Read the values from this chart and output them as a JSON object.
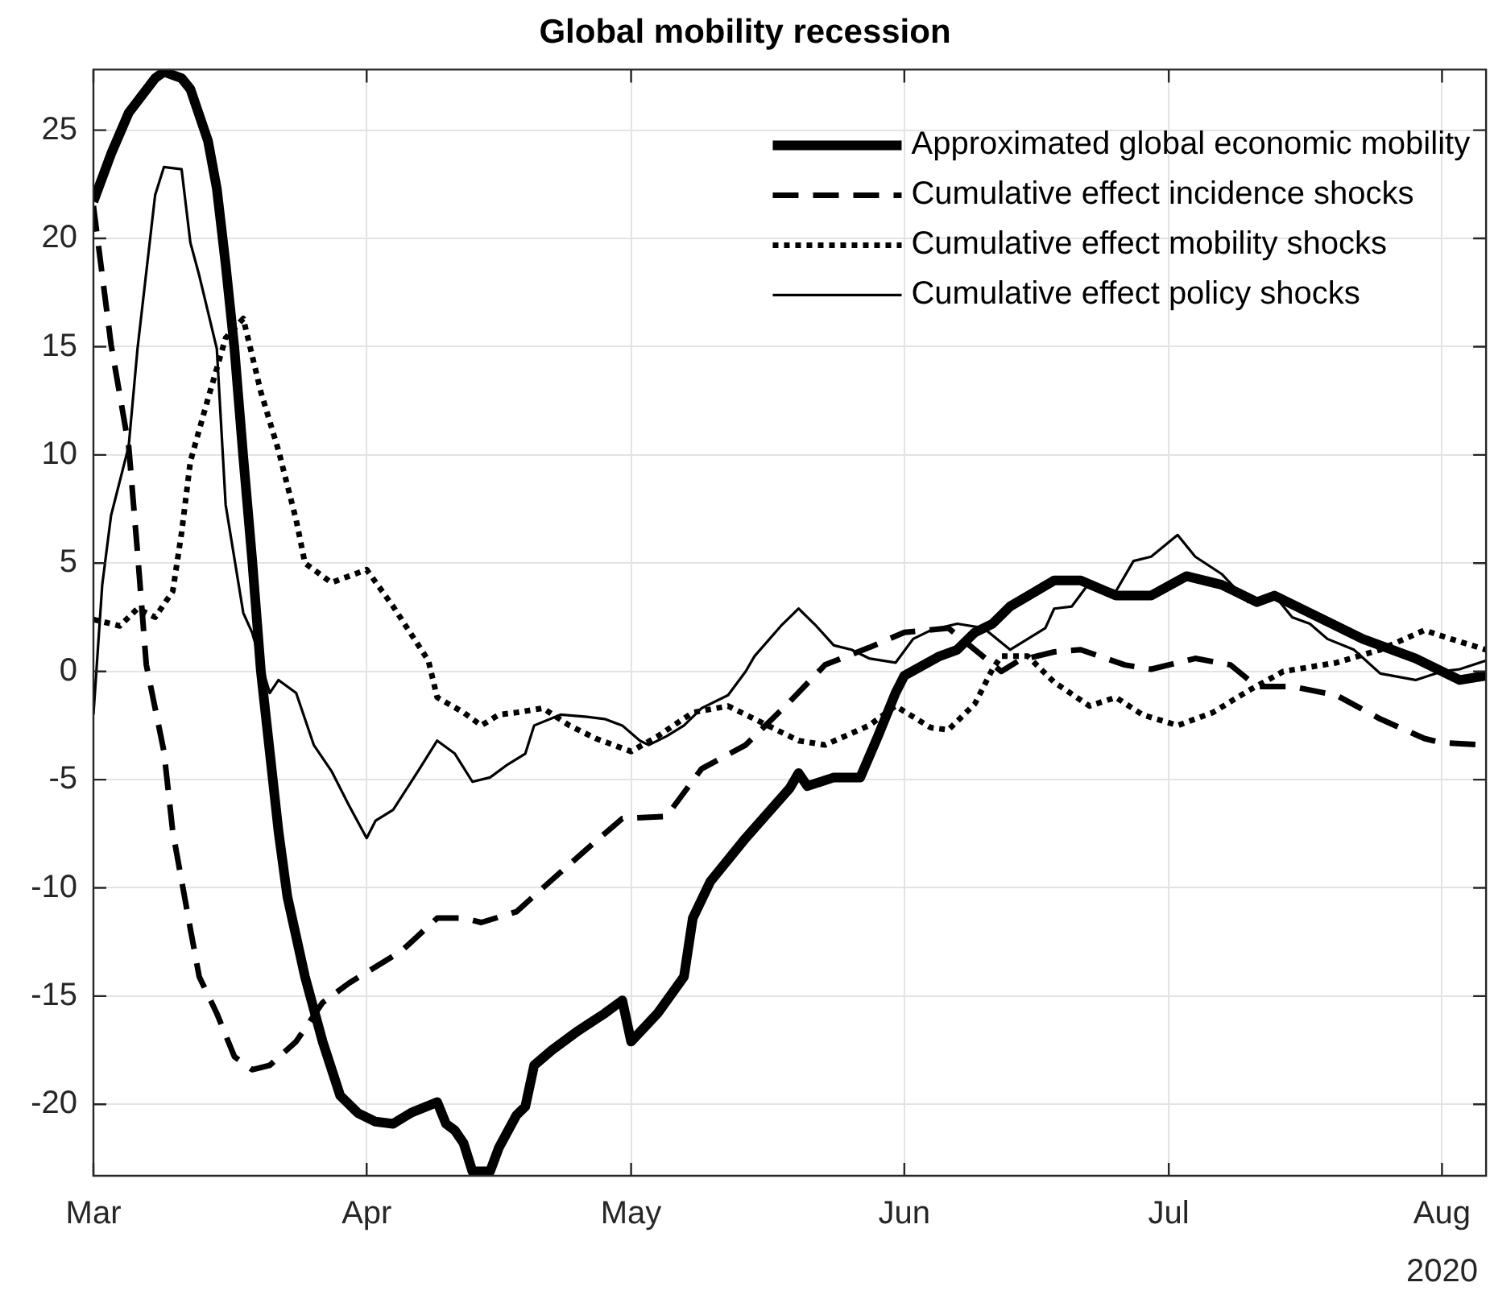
{
  "chart_data": {
    "type": "line",
    "title": "Global mobility recession",
    "xlim": [
      "2020-03-01",
      "2020-08-06"
    ],
    "ylim": [
      -23.3,
      27.8
    ],
    "xticks": [
      {
        "value": "2020-03-01",
        "label": "Mar"
      },
      {
        "value": "2020-04-01",
        "label": "Apr"
      },
      {
        "value": "2020-05-01",
        "label": "May"
      },
      {
        "value": "2020-06-01",
        "label": "Jun"
      },
      {
        "value": "2020-07-01",
        "label": "Jul"
      },
      {
        "value": "2020-08-01",
        "label": "Aug"
      }
    ],
    "yticks": [
      -20,
      -15,
      -10,
      -5,
      0,
      5,
      10,
      15,
      20,
      25
    ],
    "grid": true,
    "legend": "top right",
    "marker": "none",
    "annotations": [
      "2020"
    ],
    "series": [
      {
        "name": "Approximated global economic mobility",
        "color": "#000000",
        "line_style": "solid",
        "x": [
          "2020-03-01",
          "2020-03-03",
          "2020-03-05",
          "2020-03-08",
          "2020-03-09",
          "2020-03-11",
          "2020-03-12",
          "2020-03-14",
          "2020-03-15",
          "2020-03-16",
          "2020-03-17",
          "2020-03-18",
          "2020-03-19",
          "2020-03-20",
          "2020-03-21",
          "2020-03-22",
          "2020-03-23",
          "2020-03-25",
          "2020-03-27",
          "2020-03-29",
          "2020-03-31",
          "2020-04-02",
          "2020-04-04",
          "2020-04-06",
          "2020-04-09",
          "2020-04-10",
          "2020-04-11",
          "2020-04-12",
          "2020-04-13",
          "2020-04-15",
          "2020-04-16",
          "2020-04-18",
          "2020-04-19",
          "2020-04-20",
          "2020-04-22",
          "2020-04-25",
          "2020-04-28",
          "2020-04-30",
          "2020-05-01",
          "2020-05-04",
          "2020-05-07",
          "2020-05-08",
          "2020-05-10",
          "2020-05-14",
          "2020-05-19",
          "2020-05-20",
          "2020-05-21",
          "2020-05-24",
          "2020-05-27",
          "2020-05-29",
          "2020-05-31",
          "2020-06-01",
          "2020-06-05",
          "2020-06-07",
          "2020-06-09",
          "2020-06-11",
          "2020-06-13",
          "2020-06-18",
          "2020-06-21",
          "2020-06-25",
          "2020-06-29",
          "2020-07-03",
          "2020-07-07",
          "2020-07-11",
          "2020-07-13",
          "2020-07-17",
          "2020-07-23",
          "2020-07-29",
          "2020-08-03",
          "2020-08-06"
        ],
        "values": [
          21.7,
          23.9,
          25.8,
          27.4,
          27.7,
          27.4,
          26.9,
          24.5,
          22.3,
          18.8,
          14.9,
          9.9,
          5.2,
          0,
          -3.7,
          -7.4,
          -10.4,
          -14.1,
          -17.1,
          -19.6,
          -20.4,
          -20.8,
          -20.9,
          -20.4,
          -19.9,
          -20.9,
          -21.2,
          -21.8,
          -23.1,
          -23.1,
          -22.0,
          -20.5,
          -20.1,
          -18.2,
          -17.5,
          -16.6,
          -15.8,
          -15.2,
          -17.1,
          -15.8,
          -14.1,
          -11.4,
          -9.7,
          -7.7,
          -5.4,
          -4.7,
          -5.3,
          -4.9,
          -4.9,
          -3.0,
          -1.0,
          -0.2,
          0.7,
          1.0,
          1.8,
          2.2,
          3.0,
          4.2,
          4.2,
          3.5,
          3.5,
          4.4,
          4.0,
          3.2,
          3.5,
          2.7,
          1.5,
          0.6,
          -0.4,
          -0.2
        ]
      },
      {
        "name": "Cumulative effect incidence shocks",
        "color": "#000000",
        "line_style": "dashed",
        "x": [
          "2020-03-01",
          "2020-03-03",
          "2020-03-05",
          "2020-03-06",
          "2020-03-07",
          "2020-03-09",
          "2020-03-10",
          "2020-03-12",
          "2020-03-13",
          "2020-03-15",
          "2020-03-17",
          "2020-03-19",
          "2020-03-21",
          "2020-03-24",
          "2020-03-27",
          "2020-03-30",
          "2020-04-01",
          "2020-04-05",
          "2020-04-09",
          "2020-04-12",
          "2020-04-14",
          "2020-04-18",
          "2020-04-21",
          "2020-04-26",
          "2020-04-30",
          "2020-05-05",
          "2020-05-09",
          "2020-05-14",
          "2020-05-19",
          "2020-05-23",
          "2020-05-28",
          "2020-06-01",
          "2020-06-06",
          "2020-06-12",
          "2020-06-14",
          "2020-06-18",
          "2020-06-21",
          "2020-06-26",
          "2020-06-29",
          "2020-07-04",
          "2020-07-08",
          "2020-07-11",
          "2020-07-15",
          "2020-07-20",
          "2020-07-25",
          "2020-07-30",
          "2020-08-01",
          "2020-08-06"
        ],
        "values": [
          21.5,
          15.1,
          10.4,
          5.5,
          0.3,
          -3.7,
          -7.4,
          -11.9,
          -14.1,
          -15.8,
          -17.8,
          -18.4,
          -18.2,
          -17.1,
          -15.3,
          -14.4,
          -13.9,
          -12.9,
          -11.4,
          -11.4,
          -11.6,
          -11.1,
          -10.0,
          -8.2,
          -6.8,
          -6.7,
          -4.5,
          -3.4,
          -1.4,
          0.3,
          1.1,
          1.8,
          2.0,
          0,
          0.5,
          0.9,
          1.0,
          0.3,
          0.1,
          0.6,
          0.3,
          -0.7,
          -0.7,
          -1.1,
          -2.2,
          -3.1,
          -3.3,
          -3.4
        ]
      },
      {
        "name": "Cumulative effect mobility shocks",
        "color": "#000000",
        "line_style": "dotted",
        "x": [
          "2020-03-01",
          "2020-03-04",
          "2020-03-06",
          "2020-03-08",
          "2020-03-10",
          "2020-03-11",
          "2020-03-12",
          "2020-03-14",
          "2020-03-16",
          "2020-03-18",
          "2020-03-20",
          "2020-03-22",
          "2020-03-24",
          "2020-03-25",
          "2020-03-28",
          "2020-04-01",
          "2020-04-04",
          "2020-04-08",
          "2020-04-09",
          "2020-04-12",
          "2020-04-14",
          "2020-04-16",
          "2020-04-18",
          "2020-04-21",
          "2020-04-24",
          "2020-04-27",
          "2020-05-01",
          "2020-05-04",
          "2020-05-08",
          "2020-05-12",
          "2020-05-15",
          "2020-05-20",
          "2020-05-23",
          "2020-05-28",
          "2020-05-31",
          "2020-06-04",
          "2020-06-06",
          "2020-06-09",
          "2020-06-11",
          "2020-06-12",
          "2020-06-15",
          "2020-06-18",
          "2020-06-22",
          "2020-06-25",
          "2020-06-28",
          "2020-07-02",
          "2020-07-06",
          "2020-07-10",
          "2020-07-14",
          "2020-07-20",
          "2020-07-25",
          "2020-07-30",
          "2020-08-02",
          "2020-08-06"
        ],
        "values": [
          2.4,
          2.1,
          2.9,
          2.5,
          3.7,
          6.4,
          9.7,
          12.6,
          15.4,
          16.3,
          12.9,
          10.2,
          7.0,
          5.0,
          4.1,
          4.7,
          3.0,
          0.5,
          -1.2,
          -1.9,
          -2.5,
          -2.0,
          -1.9,
          -1.7,
          -2.5,
          -3.1,
          -3.7,
          -3.0,
          -1.9,
          -1.6,
          -2.2,
          -3.2,
          -3.4,
          -2.5,
          -1.6,
          -2.6,
          -2.7,
          -1.5,
          0.1,
          0.7,
          0.7,
          -0.5,
          -1.6,
          -1.2,
          -2.0,
          -2.5,
          -1.9,
          -0.9,
          0,
          0.4,
          1.0,
          1.9,
          1.5,
          1.0
        ]
      },
      {
        "name": "Cumulative effect policy shocks",
        "color": "#000000",
        "line_style": "solid",
        "x": [
          "2020-03-01",
          "2020-03-02",
          "2020-03-03",
          "2020-03-05",
          "2020-03-06",
          "2020-03-08",
          "2020-03-09",
          "2020-03-11",
          "2020-03-12",
          "2020-03-13",
          "2020-03-15",
          "2020-03-16",
          "2020-03-18",
          "2020-03-19",
          "2020-03-21",
          "2020-03-22",
          "2020-03-24",
          "2020-03-26",
          "2020-03-28",
          "2020-03-30",
          "2020-04-01",
          "2020-04-02",
          "2020-04-04",
          "2020-04-07",
          "2020-04-09",
          "2020-04-11",
          "2020-04-13",
          "2020-04-15",
          "2020-04-17",
          "2020-04-19",
          "2020-04-20",
          "2020-04-23",
          "2020-04-26",
          "2020-04-28",
          "2020-04-30",
          "2020-05-02",
          "2020-05-03",
          "2020-05-05",
          "2020-05-07",
          "2020-05-09",
          "2020-05-12",
          "2020-05-14",
          "2020-05-15",
          "2020-05-18",
          "2020-05-20",
          "2020-05-22",
          "2020-05-24",
          "2020-05-26",
          "2020-05-28",
          "2020-05-31",
          "2020-06-02",
          "2020-06-04",
          "2020-06-07",
          "2020-06-10",
          "2020-06-13",
          "2020-06-17",
          "2020-06-18",
          "2020-06-20",
          "2020-06-22",
          "2020-06-25",
          "2020-06-27",
          "2020-06-29",
          "2020-07-02",
          "2020-07-04",
          "2020-07-07",
          "2020-07-10",
          "2020-07-13",
          "2020-07-15",
          "2020-07-17",
          "2020-07-19",
          "2020-07-22",
          "2020-07-25",
          "2020-07-29",
          "2020-08-01",
          "2020-08-03",
          "2020-08-06"
        ],
        "values": [
          -2.0,
          4.0,
          7.2,
          10.4,
          14.9,
          22.0,
          23.3,
          23.2,
          19.8,
          18.3,
          14.9,
          7.7,
          2.7,
          1.8,
          -1.0,
          -0.4,
          -1.0,
          -3.4,
          -4.6,
          -6.2,
          -7.7,
          -6.9,
          -6.4,
          -4.5,
          -3.2,
          -3.8,
          -5.1,
          -4.9,
          -4.3,
          -3.8,
          -2.5,
          -2.0,
          -2.1,
          -2.2,
          -2.5,
          -3.2,
          -3.4,
          -3.0,
          -2.5,
          -1.7,
          -1.1,
          0,
          0.7,
          2.1,
          2.9,
          2.1,
          1.2,
          1.0,
          0.6,
          0.4,
          1.5,
          1.9,
          2.2,
          2.0,
          1.0,
          2.0,
          2.9,
          3.0,
          4.1,
          3.7,
          5.1,
          5.3,
          6.3,
          5.3,
          4.5,
          3.2,
          3.5,
          2.5,
          2.2,
          1.5,
          1.0,
          -0.1,
          -0.4,
          0,
          0.1,
          0.5
        ]
      }
    ]
  }
}
